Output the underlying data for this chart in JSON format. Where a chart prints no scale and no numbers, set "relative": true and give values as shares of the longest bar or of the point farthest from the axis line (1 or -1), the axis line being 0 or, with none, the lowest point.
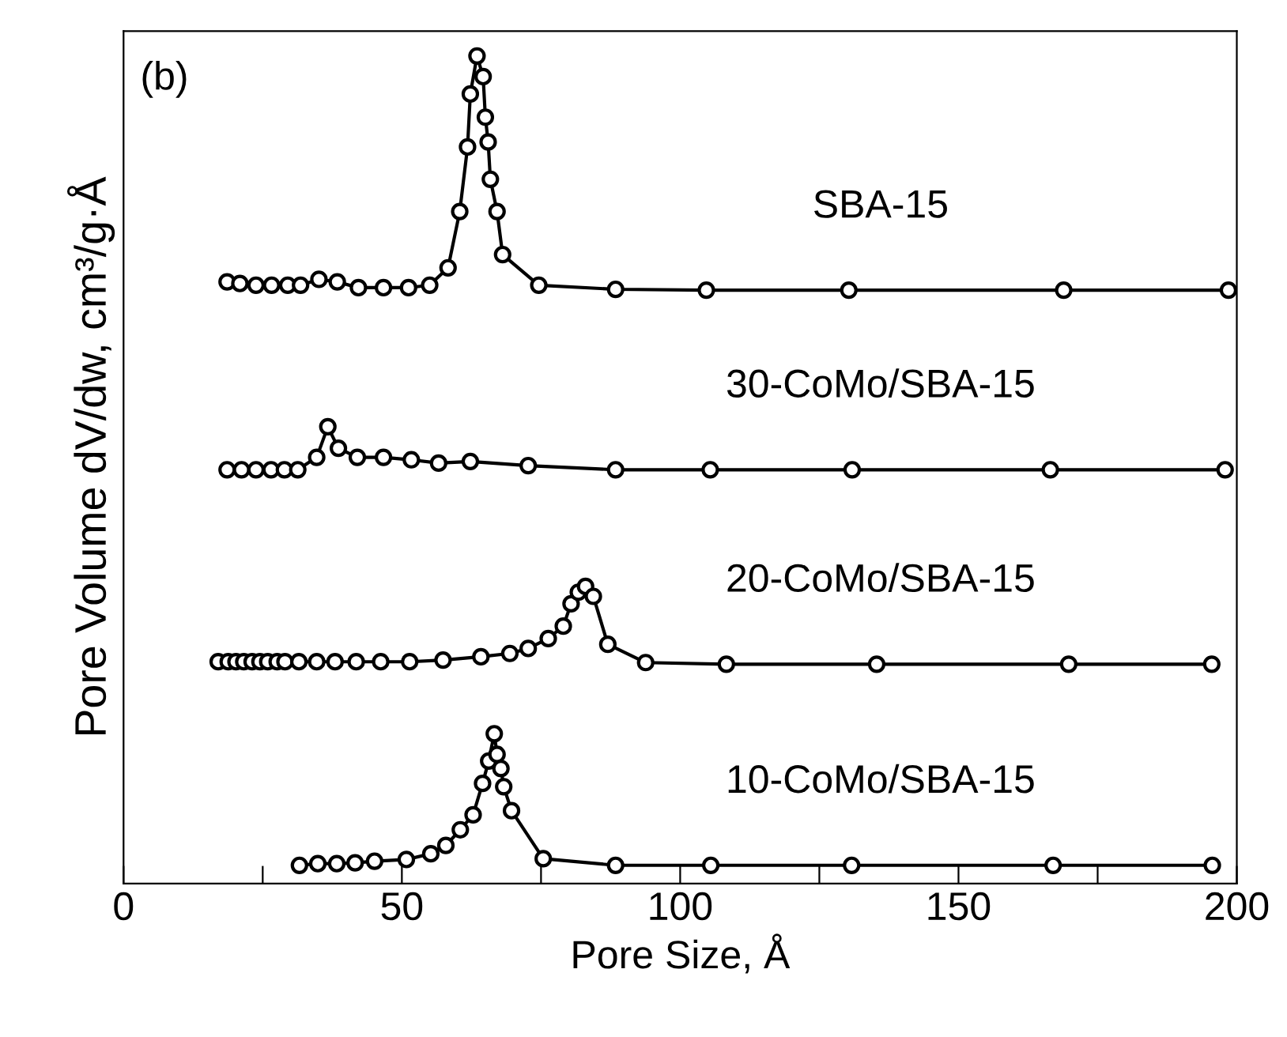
{
  "chart_data": {
    "type": "line",
    "relative": true,
    "xlabel": "Pore Size, Å",
    "ylabel": "Pore Volume dV/dw, cm³/g·Å",
    "annotations": [
      "(b)"
    ],
    "marker": "circle",
    "line_style": "solid",
    "legend": false,
    "grid": false,
    "tick_labels": "x",
    "xlim": [
      0,
      200
    ],
    "xticks": [
      0,
      {
        "value": 25,
        "label": null
      },
      50,
      {
        "value": 75,
        "label": null
      },
      100,
      {
        "value": 125,
        "label": null
      },
      150,
      {
        "value": 175,
        "label": null
      },
      200
    ],
    "series": [
      {
        "name": "SBA-15",
        "color": "#000000",
        "x": [
          18.6,
          20.9,
          23.8,
          26.6,
          29.5,
          31.8,
          35.1,
          38.4,
          42.2,
          46.7,
          51.2,
          55.0,
          58.3,
          60.4,
          61.8,
          62.3,
          63.5,
          64.6,
          65.0,
          65.5,
          65.9,
          67.1,
          68.1,
          74.6,
          88.4,
          104.7,
          130.3,
          168.9,
          198.5
        ],
        "values": [
          0.727,
          0.725,
          0.723,
          0.723,
          0.723,
          0.723,
          0.73,
          0.727,
          0.72,
          0.72,
          0.72,
          0.723,
          0.744,
          0.812,
          0.89,
          0.954,
          1.0,
          0.975,
          0.926,
          0.896,
          0.851,
          0.812,
          0.76,
          0.723,
          0.718,
          0.717,
          0.717,
          0.717,
          0.717
        ]
      },
      {
        "name": "30-CoMo/SBA-15",
        "color": "#000000",
        "x": [
          18.6,
          21.2,
          23.8,
          26.5,
          28.9,
          31.3,
          34.7,
          36.7,
          38.6,
          42.0,
          46.7,
          51.7,
          56.6,
          62.3,
          72.7,
          88.4,
          105.4,
          130.9,
          166.5,
          197.9
        ],
        "values": [
          0.5,
          0.5,
          0.5,
          0.5,
          0.5,
          0.5,
          0.515,
          0.552,
          0.526,
          0.515,
          0.515,
          0.512,
          0.508,
          0.51,
          0.505,
          0.5,
          0.5,
          0.5,
          0.5,
          0.5
        ]
      },
      {
        "name": "20-CoMo/SBA-15",
        "color": "#000000",
        "x": [
          17.0,
          18.8,
          20.2,
          21.6,
          23.1,
          24.5,
          25.9,
          27.6,
          29.0,
          31.5,
          34.7,
          38.0,
          41.8,
          46.2,
          51.4,
          57.4,
          64.2,
          69.4,
          72.7,
          76.3,
          79.0,
          80.4,
          81.7,
          83.0,
          84.4,
          87.0,
          93.8,
          108.3,
          135.3,
          169.8,
          195.5
        ],
        "values": [
          0.268,
          0.268,
          0.268,
          0.268,
          0.268,
          0.268,
          0.268,
          0.268,
          0.268,
          0.268,
          0.268,
          0.268,
          0.268,
          0.268,
          0.268,
          0.27,
          0.274,
          0.278,
          0.284,
          0.296,
          0.311,
          0.338,
          0.352,
          0.359,
          0.347,
          0.289,
          0.267,
          0.265,
          0.265,
          0.265,
          0.265
        ]
      },
      {
        "name": "10-CoMo/SBA-15",
        "color": "#000000",
        "x": [
          31.6,
          34.9,
          38.3,
          41.6,
          45.1,
          50.8,
          55.2,
          57.9,
          60.5,
          62.8,
          64.5,
          65.6,
          66.6,
          67.1,
          67.8,
          68.3,
          69.7,
          75.4,
          88.4,
          105.5,
          130.8,
          167.0,
          195.6
        ],
        "values": [
          0.022,
          0.024,
          0.024,
          0.025,
          0.027,
          0.029,
          0.036,
          0.046,
          0.065,
          0.083,
          0.121,
          0.148,
          0.181,
          0.156,
          0.139,
          0.117,
          0.088,
          0.03,
          0.022,
          0.022,
          0.022,
          0.022,
          0.022
        ]
      }
    ]
  }
}
